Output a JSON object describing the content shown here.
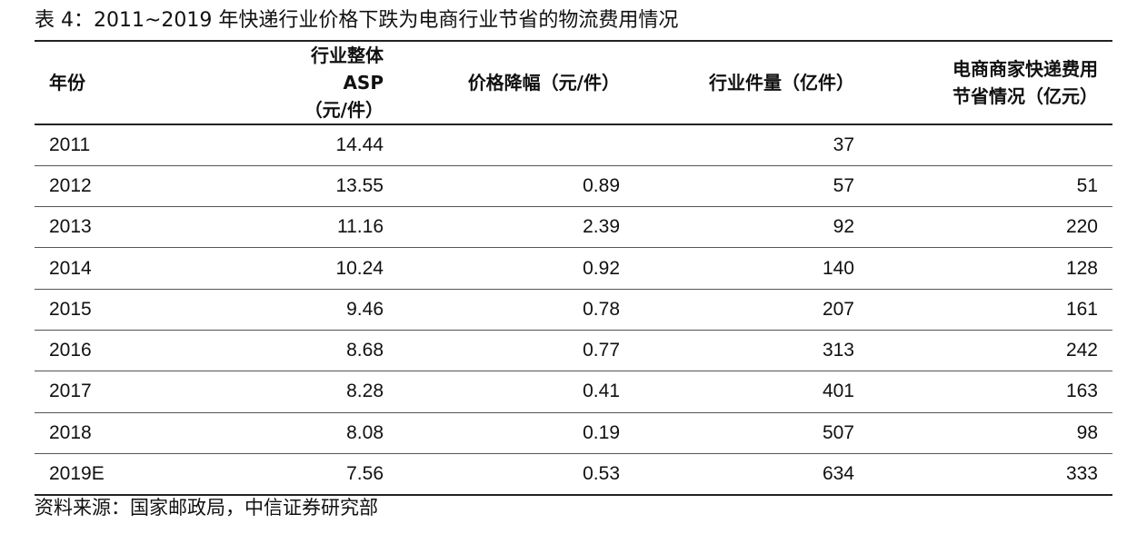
{
  "title": "表 4：2011~2019 年快递行业价格下跌为电商行业节省的物流费用情况",
  "headers": [
    {
      "line1": "年份",
      "line2": ""
    },
    {
      "line1": "行业整体 ASP",
      "line2": "（元/件）"
    },
    {
      "line1": "价格降幅（元/件）",
      "line2": ""
    },
    {
      "line1": "行业件量（亿件）",
      "line2": ""
    },
    {
      "line1": "电商商家快递费用",
      "line2": "节省情况（亿元）"
    }
  ],
  "rows": [
    [
      "2011",
      "14.44",
      "",
      "37",
      ""
    ],
    [
      "2012",
      "13.55",
      "0.89",
      "57",
      "51"
    ],
    [
      "2013",
      "11.16",
      "2.39",
      "92",
      "220"
    ],
    [
      "2014",
      "10.24",
      "0.92",
      "140",
      "128"
    ],
    [
      "2015",
      "9.46",
      "0.78",
      "207",
      "161"
    ],
    [
      "2016",
      "8.68",
      "0.77",
      "313",
      "242"
    ],
    [
      "2017",
      "8.28",
      "0.41",
      "401",
      "163"
    ],
    [
      "2018",
      "8.08",
      "0.19",
      "507",
      "98"
    ],
    [
      "2019E",
      "7.56",
      "0.53",
      "634",
      "333"
    ]
  ],
  "source": "资料来源：国家邮政局，中信证券研究部"
}
